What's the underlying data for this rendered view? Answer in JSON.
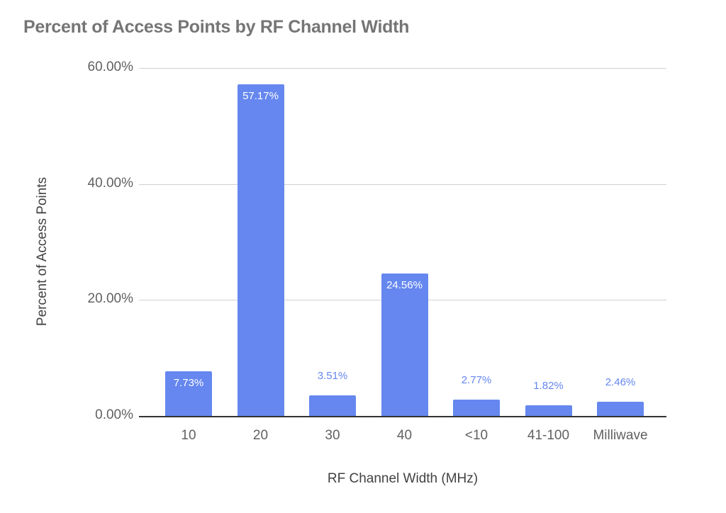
{
  "chart_data": {
    "type": "bar",
    "title": "Percent of Access Points by RF Channel Width",
    "xlabel": "RF Channel Width (MHz)",
    "ylabel": "Percent of Access Points",
    "categories": [
      "10",
      "20",
      "30",
      "40",
      "<10",
      "41-100",
      "Milliwave"
    ],
    "values": [
      7.73,
      57.17,
      3.51,
      24.56,
      2.77,
      1.82,
      2.46
    ],
    "data_labels": [
      "7.73%",
      "57.17%",
      "3.51%",
      "24.56%",
      "2.77%",
      "1.82%",
      "2.46%"
    ],
    "yticks": [
      "0.00%",
      "20.00%",
      "40.00%",
      "60.00%"
    ],
    "ylim": [
      0,
      60
    ],
    "grid": true,
    "legend": "none",
    "bar_color": "#6587ef"
  }
}
